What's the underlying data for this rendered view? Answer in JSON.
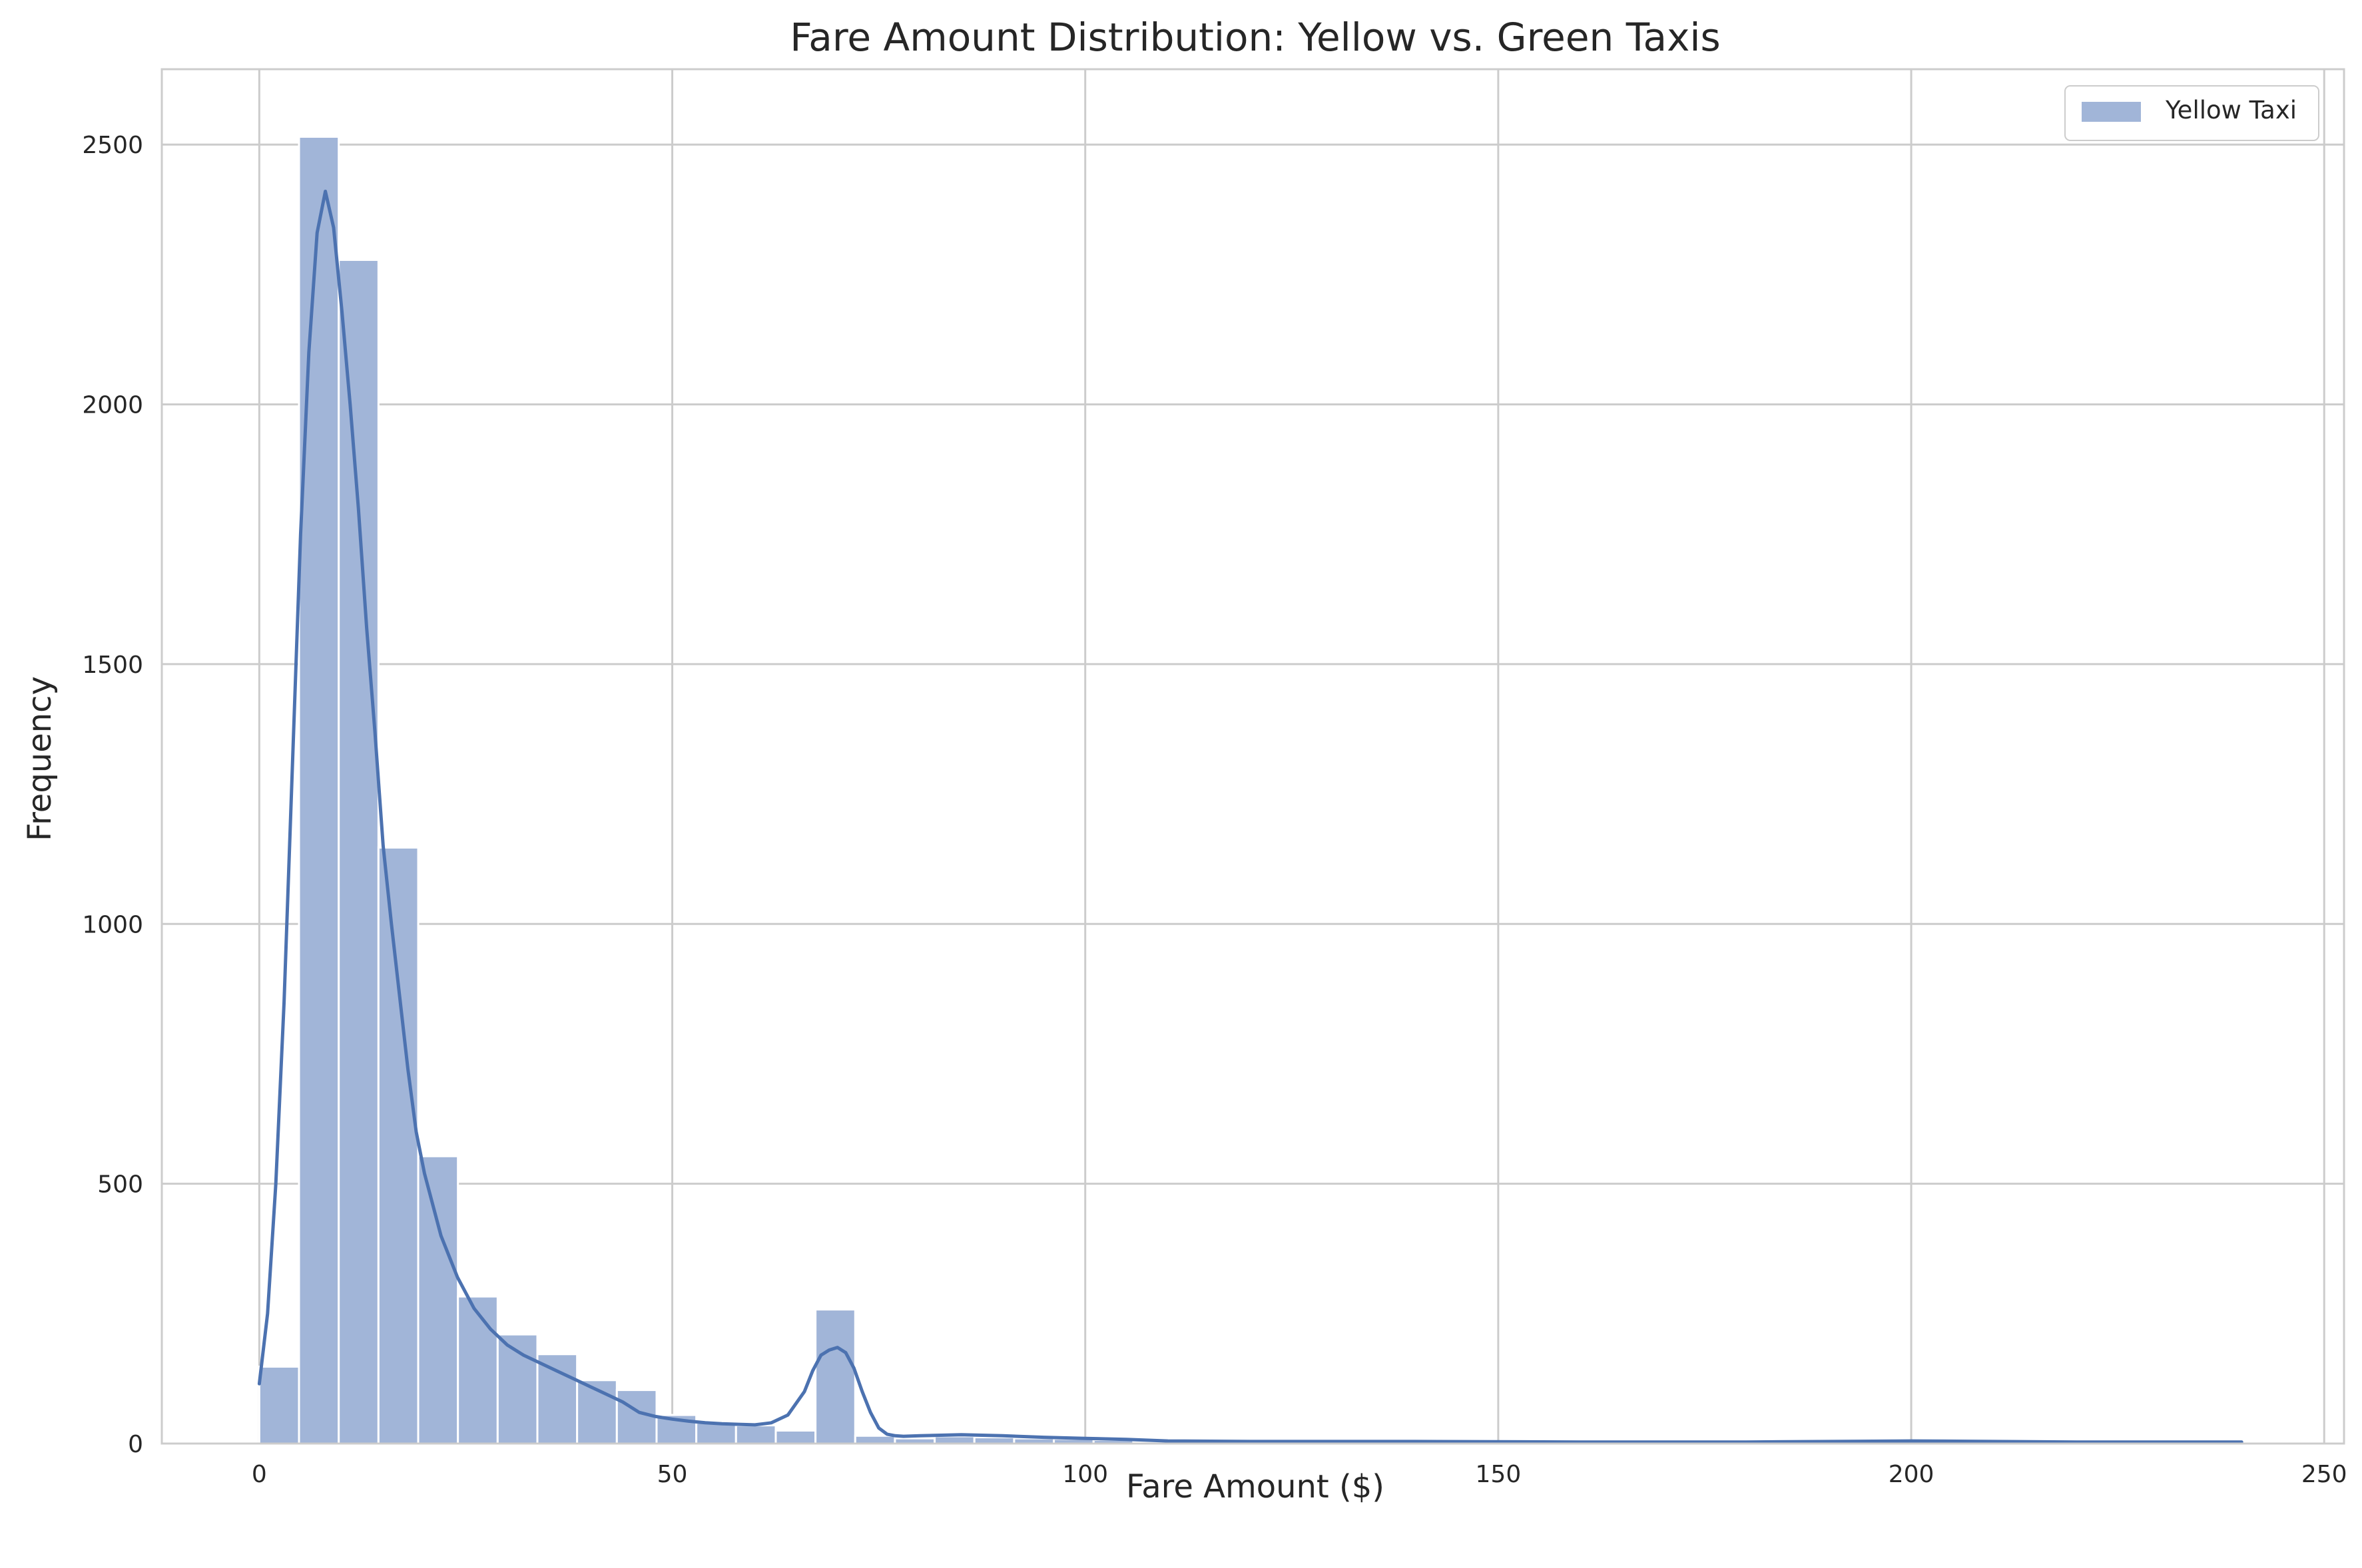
{
  "chart_data": {
    "type": "bar",
    "title": "Fare Amount Distribution: Yellow vs. Green Taxis",
    "xlabel": "Fare Amount ($)",
    "ylabel": "Frequency",
    "xlim": [
      -11.8,
      252.4
    ],
    "ylim": [
      0,
      2645
    ],
    "xticks": [
      0,
      50,
      100,
      150,
      200,
      250
    ],
    "yticks": [
      0,
      500,
      1000,
      1500,
      2000,
      2500
    ],
    "grid": true,
    "legend_position": "top-right",
    "colors": {
      "bar": "#a1b5d8",
      "line": "#4c72b0",
      "grid": "#cccccc",
      "spine": "#cccccc"
    },
    "series": [
      {
        "name": "Yellow Taxi",
        "bin_width": 4.81,
        "bin_start": 0,
        "values": [
          148,
          2515,
          2278,
          1147,
          553,
          283,
          210,
          172,
          122,
          103,
          55,
          40,
          35,
          25,
          258,
          15,
          10,
          14,
          12,
          10,
          9,
          7,
          3,
          3,
          3,
          3,
          3,
          3,
          3,
          3,
          3,
          3,
          3,
          3,
          3,
          3,
          3,
          3,
          3,
          3,
          3,
          5,
          3,
          3,
          3,
          3,
          3,
          3,
          3,
          3
        ],
        "kde": {
          "x": [
            0,
            1,
            2,
            3,
            4,
            5,
            6,
            7,
            8,
            9,
            10,
            11,
            12,
            13,
            14,
            15,
            16,
            17,
            18,
            19,
            20,
            22,
            24,
            26,
            28,
            30,
            32,
            34,
            36,
            38,
            40,
            42,
            44,
            46,
            48,
            50,
            52,
            54,
            56,
            58,
            60,
            62,
            64,
            66,
            67,
            68,
            69,
            70,
            71,
            72,
            73,
            74,
            75,
            76,
            77,
            78,
            80,
            85,
            90,
            95,
            100,
            105,
            110,
            120,
            140,
            160,
            180,
            200,
            220,
            240
          ],
          "y": [
            115,
            250,
            500,
            850,
            1300,
            1750,
            2100,
            2330,
            2410,
            2340,
            2180,
            2000,
            1800,
            1570,
            1370,
            1150,
            1000,
            860,
            720,
            600,
            520,
            400,
            320,
            260,
            220,
            190,
            170,
            155,
            140,
            125,
            110,
            95,
            80,
            60,
            52,
            47,
            43,
            40,
            38,
            37,
            36,
            40,
            55,
            100,
            140,
            170,
            180,
            185,
            175,
            145,
            100,
            60,
            30,
            18,
            15,
            14,
            15,
            17,
            15,
            12,
            10,
            8,
            5,
            4,
            4,
            3,
            3,
            5,
            3,
            3
          ]
        }
      }
    ]
  }
}
